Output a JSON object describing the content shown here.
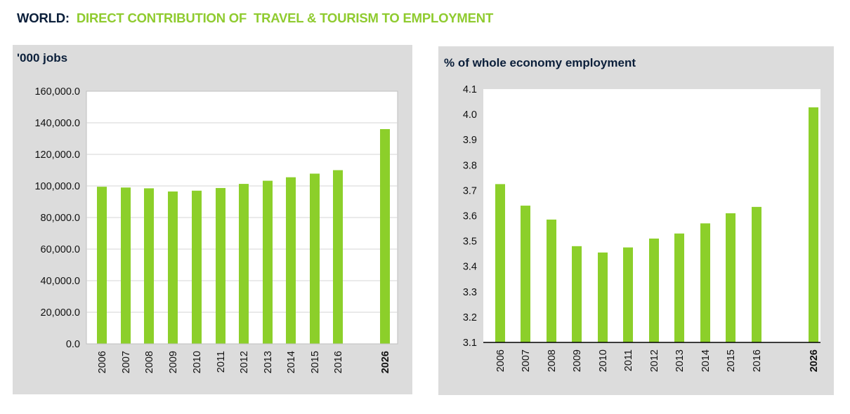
{
  "title": {
    "prefix": "WORLD:",
    "main": "DIRECT CONTRIBUTION OF  TRAVEL & TOURISM TO EMPLOYMENT"
  },
  "colors": {
    "bar": "#8ccf2a",
    "title_accent": "#8fcb2f",
    "title_dark": "#0b1f3a",
    "panel": "#dcdcdc"
  },
  "chart_data": [
    {
      "type": "bar",
      "ylabel": "'000 jobs",
      "categories": [
        "2006",
        "2007",
        "2008",
        "2009",
        "2010",
        "2011",
        "2012",
        "2013",
        "2014",
        "2015",
        "2016",
        "2026"
      ],
      "emphasized_category": "2026",
      "values": [
        99500,
        99000,
        98500,
        96500,
        97000,
        98700,
        101300,
        103300,
        105500,
        107800,
        110000,
        136000
      ],
      "ylim": [
        0,
        160000
      ],
      "yticks": [
        0,
        20000,
        40000,
        60000,
        80000,
        100000,
        120000,
        140000,
        160000
      ],
      "ytick_labels": [
        "0.0",
        "20,000.0",
        "40,000.0",
        "60,000.0",
        "80,000.0",
        "100,000.0",
        "120,000.0",
        "140,000.0",
        "160,000.0"
      ],
      "grid": true
    },
    {
      "type": "bar",
      "ylabel": "% of whole economy employment",
      "categories": [
        "2006",
        "2007",
        "2008",
        "2009",
        "2010",
        "2011",
        "2012",
        "2013",
        "2014",
        "2015",
        "2016",
        "2026"
      ],
      "emphasized_category": "2026",
      "values": [
        3.725,
        3.64,
        3.585,
        3.48,
        3.455,
        3.475,
        3.51,
        3.53,
        3.57,
        3.61,
        3.635,
        4.028
      ],
      "ylim": [
        3.1,
        4.1
      ],
      "yticks": [
        3.1,
        3.2,
        3.3,
        3.4,
        3.5,
        3.6,
        3.7,
        3.8,
        3.9,
        4.0,
        4.1
      ],
      "ytick_labels": [
        "3.1",
        "3.2",
        "3.3",
        "3.4",
        "3.5",
        "3.6",
        "3.7",
        "3.8",
        "3.9",
        "4.0",
        "4.1"
      ],
      "grid": false
    }
  ]
}
